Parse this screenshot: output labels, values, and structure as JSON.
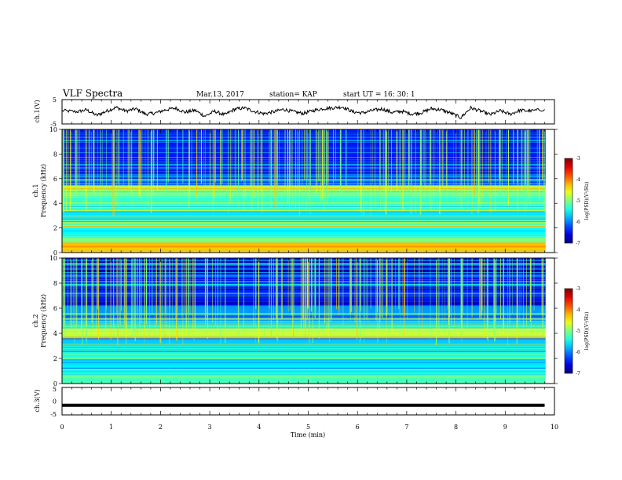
{
  "header": {
    "title": "VLF Spectra",
    "date": "Mar.13, 2017",
    "station": "station= KAP",
    "start": "start  UT =   16: 30: 1"
  },
  "colors": {
    "trace": "#000000",
    "frame": "#000000"
  },
  "chart_data": [
    {
      "type": "line",
      "name": "ch1-waveform",
      "ylabel": "ch.1(V)",
      "ylim": [
        -5,
        5
      ],
      "yticks": [
        "5",
        "-5"
      ],
      "xlim": [
        0,
        10
      ],
      "x_end": 9.8,
      "x": [
        0.0,
        0.3,
        0.5,
        0.7,
        0.9,
        1.1,
        1.3,
        1.5,
        1.7,
        1.9,
        2.1,
        2.3,
        2.5,
        2.7,
        2.9,
        3.1,
        3.3,
        3.5,
        3.7,
        3.9,
        4.1,
        4.3,
        4.5,
        4.7,
        4.9,
        5.1,
        5.3,
        5.5,
        5.7,
        5.9,
        6.1,
        6.3,
        6.5,
        6.7,
        6.9,
        7.1,
        7.3,
        7.5,
        7.7,
        7.9,
        8.1,
        8.3,
        8.5,
        8.7,
        8.9,
        9.1,
        9.3,
        9.5,
        9.8
      ],
      "y": [
        0.5,
        0.0,
        0.8,
        -1.5,
        0.2,
        1.8,
        0.3,
        1.2,
        -1.0,
        -0.5,
        0.8,
        1.5,
        -0.2,
        0.6,
        -1.8,
        0.2,
        -1.3,
        1.0,
        1.6,
        0.2,
        -0.8,
        0.0,
        1.0,
        0.0,
        -0.7,
        0.5,
        1.3,
        1.6,
        2.0,
        0.0,
        -0.5,
        0.5,
        1.2,
        -0.3,
        0.2,
        -0.9,
        -0.4,
        1.3,
        0.8,
        -0.6,
        -2.4,
        1.6,
        0.3,
        -1.2,
        0.4,
        -1.0,
        0.6,
        0.3,
        1.0
      ]
    },
    {
      "type": "heatmap",
      "name": "ch1-spectrogram",
      "ylabel_top": "ch.1",
      "ylabel": "Frequency (kHz)",
      "ylim": [
        0,
        10
      ],
      "yticks": [
        "0",
        "2",
        "4",
        "6",
        "8",
        "10"
      ],
      "xlim": [
        0,
        10
      ],
      "colorbar": {
        "label": "log(PSD)(V²/Hz)",
        "range": [
          -7,
          -3
        ],
        "ticks": [
          "-3",
          "-4",
          "-5",
          "-6",
          "-7"
        ]
      },
      "bands": [
        {
          "f0": 0.0,
          "f1": 0.7,
          "level": -4.4
        },
        {
          "f0": 0.7,
          "f1": 1.3,
          "level": -5.0
        },
        {
          "f0": 1.3,
          "f1": 2.0,
          "level": -5.5
        },
        {
          "f0": 2.0,
          "f1": 2.6,
          "level": -4.9
        },
        {
          "f0": 2.6,
          "f1": 3.4,
          "level": -5.6
        },
        {
          "f0": 3.4,
          "f1": 4.6,
          "level": -5.3
        },
        {
          "f0": 4.6,
          "f1": 5.4,
          "level": -5.0
        },
        {
          "f0": 5.4,
          "f1": 6.4,
          "level": -6.1
        },
        {
          "f0": 6.4,
          "f1": 10.0,
          "level": -6.4
        }
      ]
    },
    {
      "type": "heatmap",
      "name": "ch2-spectrogram",
      "ylabel_top": "ch.2",
      "ylabel": "Frequency (kHz)",
      "ylim": [
        0,
        10
      ],
      "yticks": [
        "0",
        "2",
        "4",
        "6",
        "8",
        "10"
      ],
      "xlim": [
        0,
        10
      ],
      "colorbar": {
        "label": "log(PSD)(V²/Hz)",
        "range": [
          -7,
          -3
        ],
        "ticks": [
          "-3",
          "-4",
          "-5",
          "-6",
          "-7"
        ]
      },
      "bands": [
        {
          "f0": 0.0,
          "f1": 0.8,
          "level": -5.2
        },
        {
          "f0": 0.8,
          "f1": 2.0,
          "level": -5.6
        },
        {
          "f0": 2.0,
          "f1": 3.0,
          "level": -5.4
        },
        {
          "f0": 3.0,
          "f1": 3.6,
          "level": -5.7
        },
        {
          "f0": 3.6,
          "f1": 4.4,
          "level": -4.8
        },
        {
          "f0": 4.4,
          "f1": 5.2,
          "level": -5.5
        },
        {
          "f0": 5.2,
          "f1": 6.2,
          "level": -5.9
        },
        {
          "f0": 6.2,
          "f1": 10.0,
          "level": -6.4
        }
      ]
    },
    {
      "type": "line",
      "name": "ch3-waveform",
      "ylabel": "ch.3(V)",
      "ylim": [
        -5,
        5
      ],
      "yticks": [
        "5",
        "0",
        "-5"
      ],
      "xlim": [
        0,
        10
      ],
      "x_end": 9.8,
      "x": [
        0.0,
        9.8
      ],
      "y": [
        -1.5,
        -1.5
      ],
      "xlabel": "Time (min)",
      "xticks": [
        "0",
        "1",
        "2",
        "3",
        "4",
        "5",
        "6",
        "7",
        "8",
        "9",
        "10"
      ]
    }
  ]
}
